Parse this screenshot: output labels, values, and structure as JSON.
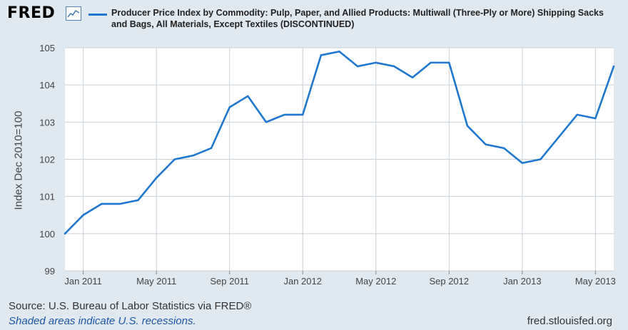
{
  "header": {
    "logo_text": "FRED",
    "legend_label": "Producer Price Index by Commodity: Pulp, Paper, and Allied Products: Multiwall (Three-Ply or More) Shipping Sacks and Bags, All Materials, Except Textiles (DISCONTINUED)"
  },
  "footer": {
    "source": "Source: U.S. Bureau of Labor Statistics via FRED®",
    "note": "Shaded areas indicate U.S. recessions.",
    "url": "fred.stlouisfed.org"
  },
  "colors": {
    "background": "#e1e9f0",
    "plot_background": "#ffffff",
    "series": "#1f77d0",
    "grid": "#c8d0d8"
  },
  "chart_data": {
    "type": "line",
    "title": "Producer Price Index by Commodity: Pulp, Paper, and Allied Products: Multiwall (Three-Ply or More) Shipping Sacks and Bags, All Materials, Except Textiles (DISCONTINUED)",
    "xlabel": "",
    "ylabel": "Index Dec 2010=100",
    "ylim": [
      99,
      105
    ],
    "yticks": [
      99,
      100,
      101,
      102,
      103,
      104,
      105
    ],
    "x": [
      "Dec 2010",
      "Jan 2011",
      "Feb 2011",
      "Mar 2011",
      "Apr 2011",
      "May 2011",
      "Jun 2011",
      "Jul 2011",
      "Aug 2011",
      "Sep 2011",
      "Oct 2011",
      "Nov 2011",
      "Dec 2011",
      "Jan 2012",
      "Feb 2012",
      "Mar 2012",
      "Apr 2012",
      "May 2012",
      "Jun 2012",
      "Jul 2012",
      "Aug 2012",
      "Sep 2012",
      "Oct 2012",
      "Nov 2012",
      "Dec 2012",
      "Jan 2013",
      "Feb 2013",
      "Mar 2013",
      "Apr 2013",
      "May 2013",
      "Jun 2013"
    ],
    "xticks": [
      {
        "label": "Jan 2011",
        "index": 1
      },
      {
        "label": "May 2011",
        "index": 5
      },
      {
        "label": "Sep 2011",
        "index": 9
      },
      {
        "label": "Jan 2012",
        "index": 13
      },
      {
        "label": "May 2012",
        "index": 17
      },
      {
        "label": "Sep 2012",
        "index": 21
      },
      {
        "label": "Jan 2013",
        "index": 25
      },
      {
        "label": "May 2013",
        "index": 29
      }
    ],
    "series": [
      {
        "name": "Producer Price Index by Commodity: Pulp, Paper, and Allied Products: Multiwall (Three-Ply or More) Shipping Sacks and Bags, All Materials, Except Textiles (DISCONTINUED)",
        "values": [
          100.0,
          100.5,
          100.8,
          100.8,
          100.9,
          101.5,
          102.0,
          102.1,
          102.3,
          103.4,
          103.7,
          103.0,
          103.2,
          103.2,
          104.8,
          104.9,
          104.5,
          104.6,
          104.5,
          104.2,
          104.6,
          104.6,
          102.9,
          102.4,
          102.3,
          101.9,
          102.0,
          102.6,
          103.2,
          103.1,
          104.5
        ]
      }
    ],
    "grid": true,
    "legend": "top"
  }
}
